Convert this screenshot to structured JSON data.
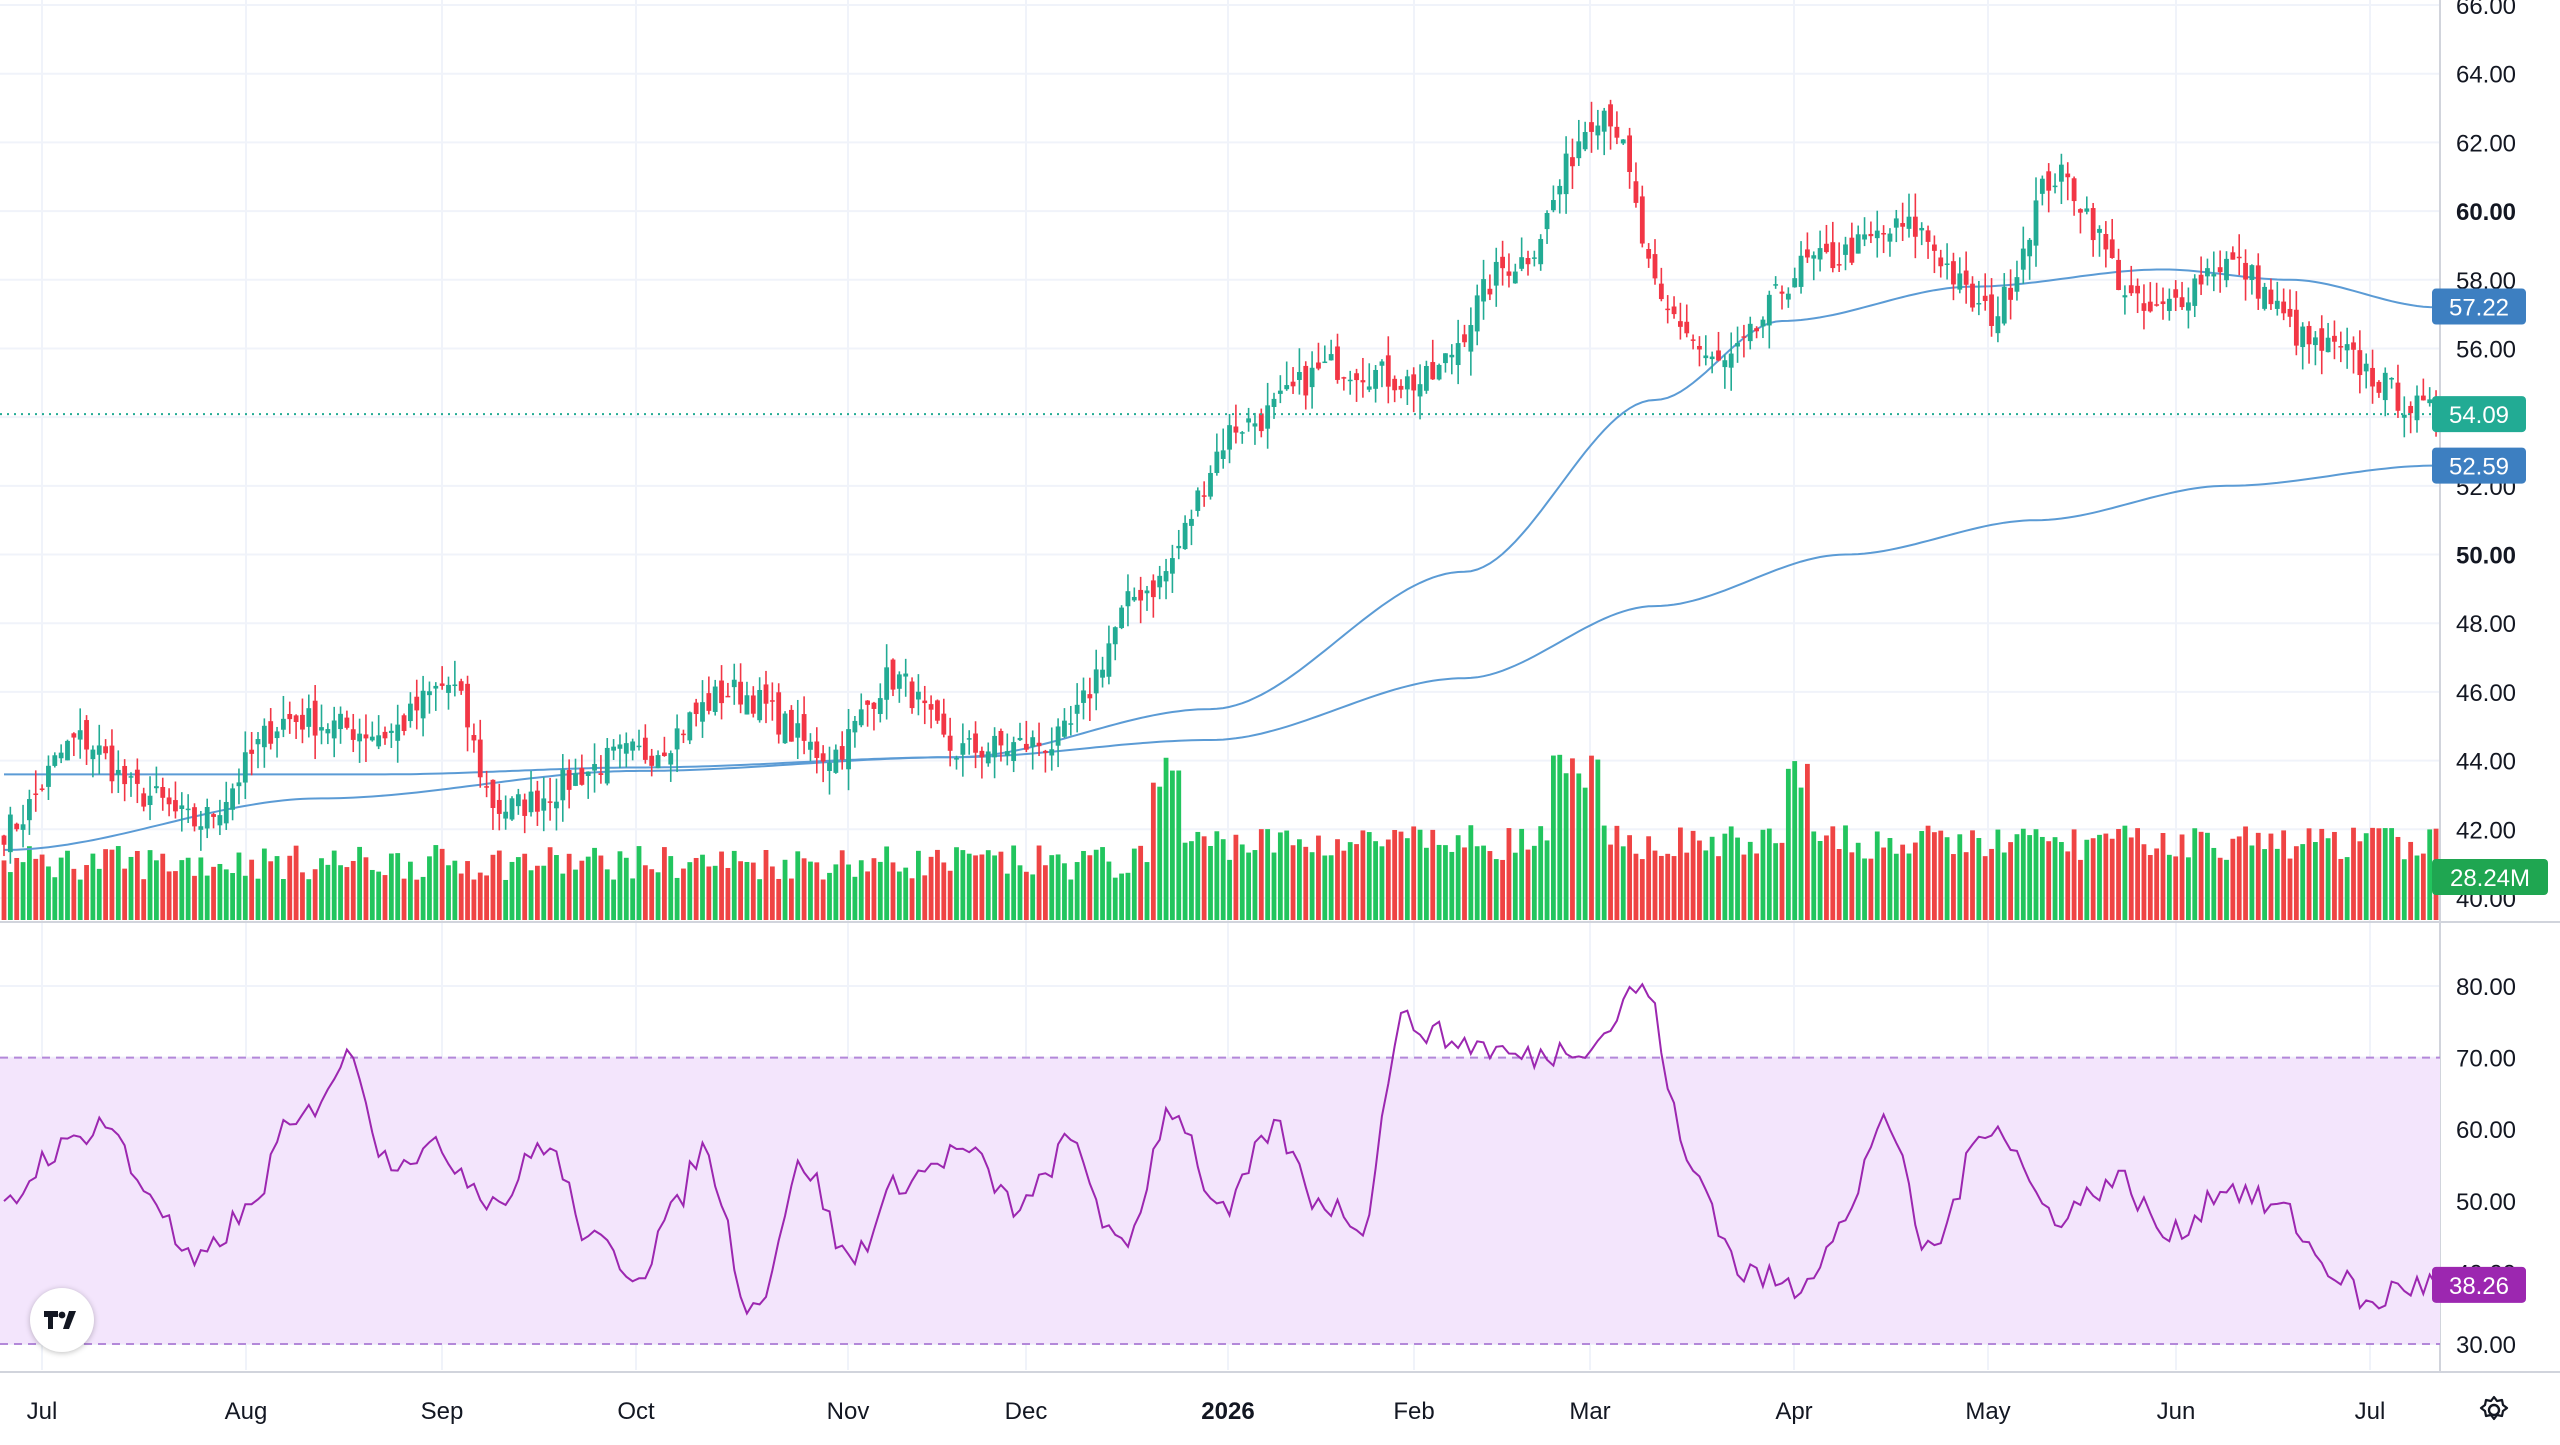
{
  "chart_data": [
    {
      "type": "candlestick",
      "pane": "price",
      "y_ticks": [
        "40.00",
        "42.00",
        "44.00",
        "46.00",
        "48.00",
        "50.00",
        "52.00",
        "54.00",
        "56.00",
        "58.00",
        "60.00",
        "62.00",
        "64.00",
        "66.00"
      ],
      "ylim": [
        40,
        66
      ],
      "last_price": 54.09,
      "series": [
        {
          "name": "Price",
          "start": 42.0,
          "anchors": [
            [
              0,
              42.0
            ],
            [
              12,
              44.6
            ],
            [
              22,
              43.0
            ],
            [
              30,
              42.2
            ],
            [
              45,
              45.2
            ],
            [
              60,
              44.8
            ],
            [
              70,
              46.2
            ],
            [
              78,
              42.6
            ],
            [
              100,
              44.2
            ],
            [
              115,
              46.0
            ],
            [
              130,
              44.2
            ],
            [
              140,
              46.4
            ],
            [
              150,
              44.3
            ],
            [
              165,
              44.5
            ],
            [
              180,
              49.0
            ],
            [
              195,
              53.8
            ],
            [
              210,
              55.5
            ],
            [
              223,
              55.0
            ],
            [
              238,
              58.5
            ],
            [
              252,
              63.0
            ],
            [
              262,
              57.0
            ],
            [
              270,
              55.5
            ],
            [
              285,
              58.5
            ],
            [
              300,
              59.5
            ],
            [
              313,
              57.0
            ],
            [
              323,
              61.0
            ],
            [
              338,
              57.0
            ],
            [
              350,
              58.5
            ],
            [
              365,
              56.0
            ],
            [
              383,
              54.09
            ]
          ]
        },
        {
          "name": "MA 1",
          "value": 57.22,
          "anchors": [
            [
              0,
              41.4
            ],
            [
              50,
              42.9
            ],
            [
              100,
              43.7
            ],
            [
              150,
              44.1
            ],
            [
              190,
              45.5
            ],
            [
              230,
              49.5
            ],
            [
              260,
              54.5
            ],
            [
              280,
              56.8
            ],
            [
              310,
              57.8
            ],
            [
              340,
              58.3
            ],
            [
              360,
              58.0
            ],
            [
              383,
              57.2
            ]
          ]
        },
        {
          "name": "MA 2",
          "value": 52.59,
          "anchors": [
            [
              0,
              43.6
            ],
            [
              60,
              43.6
            ],
            [
              100,
              43.8
            ],
            [
              150,
              44.1
            ],
            [
              190,
              44.6
            ],
            [
              230,
              46.4
            ],
            [
              260,
              48.5
            ],
            [
              290,
              50.0
            ],
            [
              320,
              51.0
            ],
            [
              350,
              52.0
            ],
            [
              383,
              52.59
            ]
          ]
        }
      ],
      "volume": {
        "last": "28.24M"
      }
    },
    {
      "type": "line",
      "pane": "rsi",
      "y_ticks": [
        "30.00",
        "40.00",
        "50.00",
        "60.00",
        "70.00",
        "80.00"
      ],
      "ylim": [
        28,
        85
      ],
      "band": [
        30,
        70
      ],
      "last_value": 38.26,
      "series": [
        {
          "name": "RSI",
          "anchors": [
            [
              0,
              49
            ],
            [
              8,
              57
            ],
            [
              16,
              61
            ],
            [
              22,
              52
            ],
            [
              30,
              41
            ],
            [
              38,
              48
            ],
            [
              45,
              60
            ],
            [
              55,
              70
            ],
            [
              60,
              56
            ],
            [
              68,
              57
            ],
            [
              78,
              50
            ],
            [
              85,
              58
            ],
            [
              93,
              44
            ],
            [
              100,
              40
            ],
            [
              105,
              48
            ],
            [
              110,
              57
            ],
            [
              118,
              35
            ],
            [
              126,
              55
            ],
            [
              133,
              42
            ],
            [
              142,
              53
            ],
            [
              151,
              57
            ],
            [
              160,
              49
            ],
            [
              168,
              58
            ],
            [
              176,
              43
            ],
            [
              184,
              63
            ],
            [
              192,
              48
            ],
            [
              200,
              60
            ],
            [
              207,
              50
            ],
            [
              214,
              47
            ],
            [
              220,
              75
            ],
            [
              230,
              72
            ],
            [
              240,
              70
            ],
            [
              250,
              72
            ],
            [
              258,
              80
            ],
            [
              266,
              54
            ],
            [
              274,
              40
            ],
            [
              282,
              38
            ],
            [
              290,
              47
            ],
            [
              296,
              62
            ],
            [
              303,
              43
            ],
            [
              313,
              61
            ],
            [
              323,
              48
            ],
            [
              333,
              53
            ],
            [
              341,
              45
            ],
            [
              350,
              52
            ],
            [
              358,
              49
            ],
            [
              367,
              40
            ],
            [
              373,
              35
            ],
            [
              377,
              38
            ],
            [
              383,
              38.26
            ]
          ]
        }
      ]
    }
  ],
  "x_axis": {
    "labels": [
      {
        "text": "Jul",
        "bold": false
      },
      {
        "text": "Aug",
        "bold": false
      },
      {
        "text": "Sep",
        "bold": false
      },
      {
        "text": "Oct",
        "bold": false
      },
      {
        "text": "Nov",
        "bold": false
      },
      {
        "text": "Dec",
        "bold": false
      },
      {
        "text": "2026",
        "bold": true
      },
      {
        "text": "Feb",
        "bold": false
      },
      {
        "text": "Mar",
        "bold": false
      },
      {
        "text": "Apr",
        "bold": false
      },
      {
        "text": "May",
        "bold": false
      },
      {
        "text": "Jun",
        "bold": false
      },
      {
        "text": "Jul",
        "bold": false
      }
    ]
  },
  "tags": {
    "ma1": "57.22",
    "price": "54.09",
    "ma2": "52.59",
    "volume": "28.24M",
    "rsi": "38.26"
  },
  "colors": {
    "up": "#22ab94",
    "down": "#f23645",
    "ma": "#5b9bd5",
    "price_tag": "#22ab94",
    "ma_tag": "#3d7fc1",
    "volume_up": "#22c55e",
    "volume_down": "#ef4444",
    "rsi_line": "#9c27b0",
    "rsi_band": "#f3e5fc",
    "rsi_tag": "#9c27b0"
  },
  "icons": {
    "logo": "tradingview-logo",
    "settings": "gear-icon"
  }
}
